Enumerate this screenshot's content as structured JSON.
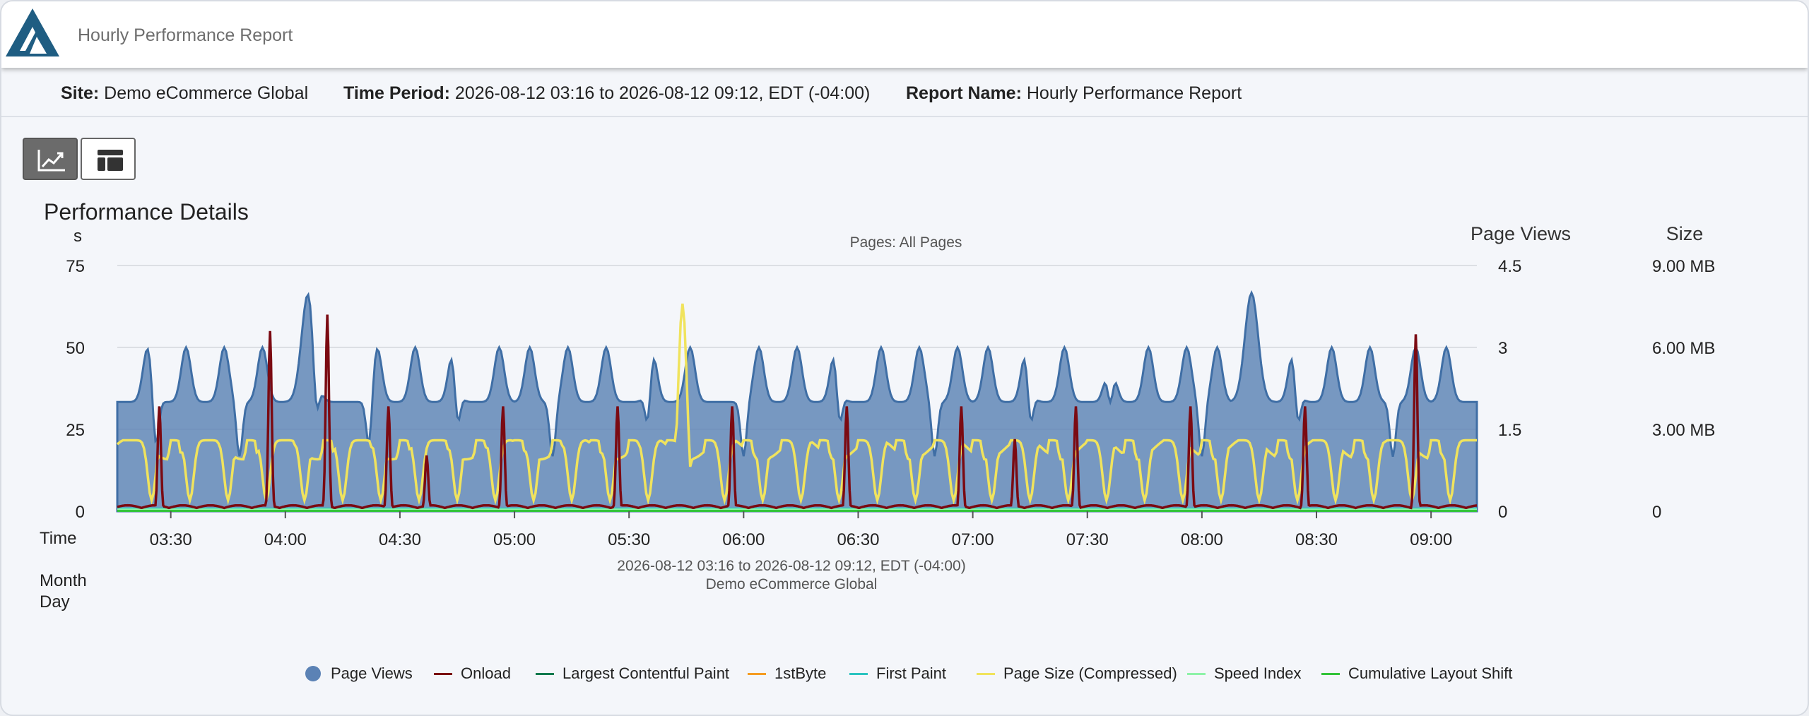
{
  "app": {
    "title": "Hourly Performance Report"
  },
  "info": {
    "site_label": "Site:",
    "site_value": "Demo eCommerce Global",
    "period_label": "Time Period:",
    "period_value": "2026-08-12 03:16 to 2026-08-12 09:12, EDT (-04:00)",
    "report_label": "Report Name:",
    "report_value": "Hourly Performance Report"
  },
  "view_toggle": {
    "chart_icon": "line-chart-icon",
    "table_icon": "table-layout-icon",
    "active": "chart"
  },
  "section": {
    "title": "Performance Details"
  },
  "colors": {
    "page_views": "#5b82b5",
    "onload": "#7b0a12",
    "lcp": "#117a4e",
    "first_byte": "#f59c23",
    "first_paint": "#2bc4c0",
    "page_size": "#f0e35d",
    "speed_index": "#8ef2a8",
    "cls": "#33c43a"
  },
  "chart_data": {
    "type": "area",
    "subtitle": "Pages: All Pages",
    "y_left": {
      "label": "s",
      "ticks": [
        "0",
        "25",
        "50",
        "75"
      ],
      "range": [
        0,
        75
      ]
    },
    "y_right_views": {
      "label": "Page Views",
      "ticks": [
        "0",
        "1.5",
        "3",
        "4.5"
      ],
      "range": [
        0,
        4.5
      ]
    },
    "y_right_size": {
      "label": "Size",
      "ticks": [
        "0",
        "3.00 MB",
        "6.00 MB",
        "9.00 MB"
      ],
      "range": [
        0,
        9
      ]
    },
    "x_axis": {
      "label_time": "Time",
      "label_month": "Month",
      "label_day": "Day",
      "range": [
        "03:16",
        "09:12"
      ],
      "ticks": [
        "03:30",
        "04:00",
        "04:30",
        "05:00",
        "05:30",
        "06:00",
        "06:30",
        "07:00",
        "07:30",
        "08:00",
        "08:30",
        "09:00"
      ],
      "caption_period": "2026-08-12 03:16 to 2026-08-12 09:12, EDT (-04:00)",
      "caption_site": "Demo eCommerce Global"
    },
    "grid": true,
    "legend_position": "bottom",
    "series": [
      {
        "name": "Page Views",
        "axis": "views",
        "baseline": 2,
        "peak": 3,
        "peaks": [
          "03:24",
          "03:34",
          "03:44",
          "03:54",
          "04:07",
          "04:24",
          "04:34",
          "04:44",
          "04:56",
          "05:04",
          "05:14",
          "05:24",
          "05:36",
          "05:46",
          "06:04",
          "06:14",
          "06:24",
          "06:36",
          "06:46",
          "06:56",
          "07:04",
          "07:14",
          "07:24",
          "07:36",
          "07:46",
          "07:56",
          "08:04",
          "08:24",
          "08:34",
          "08:44",
          "08:56",
          "09:04"
        ],
        "tall_peaks": [
          {
            "x": "04:06",
            "y": 4
          },
          {
            "x": "08:13",
            "y": 4
          }
        ]
      },
      {
        "name": "Onload",
        "axis": "s",
        "baseline": 1,
        "spikes": [
          {
            "x": "03:27",
            "y": 32
          },
          {
            "x": "03:56",
            "y": 55
          },
          {
            "x": "04:11",
            "y": 60
          },
          {
            "x": "04:27",
            "y": 32
          },
          {
            "x": "04:37",
            "y": 17
          },
          {
            "x": "04:57",
            "y": 32
          },
          {
            "x": "05:27",
            "y": 32
          },
          {
            "x": "05:57",
            "y": 32
          },
          {
            "x": "06:27",
            "y": 32
          },
          {
            "x": "06:57",
            "y": 32
          },
          {
            "x": "07:11",
            "y": 22
          },
          {
            "x": "07:27",
            "y": 32
          },
          {
            "x": "07:57",
            "y": 32
          },
          {
            "x": "08:27",
            "y": 32
          },
          {
            "x": "08:56",
            "y": 54
          }
        ]
      },
      {
        "name": "Largest Contentful Paint",
        "axis": "s",
        "baseline": 0.4
      },
      {
        "name": "1stByte",
        "axis": "s",
        "baseline": 0.2
      },
      {
        "name": "First Paint",
        "axis": "s",
        "baseline": 0.8
      },
      {
        "name": "Page Size (Compressed)",
        "axis": "size",
        "baseline_mb": 2.3,
        "peak_mb": 5.5,
        "highest": {
          "x": "05:44",
          "y_mb": 7.6
        }
      },
      {
        "name": "Speed Index",
        "axis": "s",
        "baseline": 0.5
      },
      {
        "name": "Cumulative Layout Shift",
        "axis": "s",
        "baseline": 0.1
      }
    ]
  }
}
